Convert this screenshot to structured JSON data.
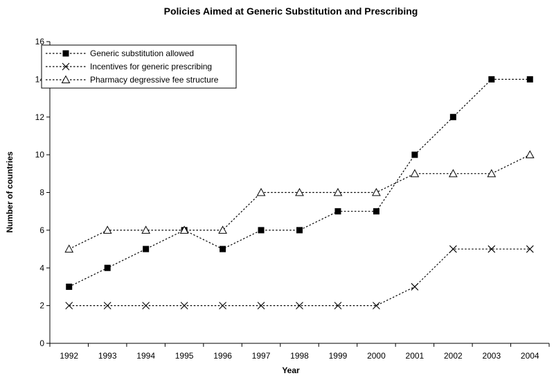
{
  "chart_data": {
    "type": "line",
    "title": "Policies Aimed at Generic Substitution and Prescribing",
    "xlabel": "Year",
    "ylabel": "Number of countries",
    "categories": [
      "1992",
      "1993",
      "1994",
      "1995",
      "1996",
      "1997",
      "1998",
      "1999",
      "2000",
      "2001",
      "2002",
      "2003",
      "2004"
    ],
    "ylim": [
      0,
      16
    ],
    "yticks": [
      0,
      2,
      4,
      6,
      8,
      10,
      12,
      14,
      16
    ],
    "grid": false,
    "legend_position": "top-left",
    "series": [
      {
        "name": "Generic substitution allowed",
        "marker": "filled-square",
        "values": [
          3,
          4,
          5,
          6,
          5,
          6,
          6,
          7,
          7,
          10,
          12,
          14,
          14
        ]
      },
      {
        "name": "Incentives for generic prescribing",
        "marker": "x",
        "values": [
          2,
          2,
          2,
          2,
          2,
          2,
          2,
          2,
          2,
          3,
          5,
          5,
          5
        ]
      },
      {
        "name": "Pharmacy degressive fee structure",
        "marker": "open-triangle",
        "values": [
          5,
          6,
          6,
          6,
          6,
          8,
          8,
          8,
          8,
          9,
          9,
          9,
          10
        ]
      }
    ]
  }
}
